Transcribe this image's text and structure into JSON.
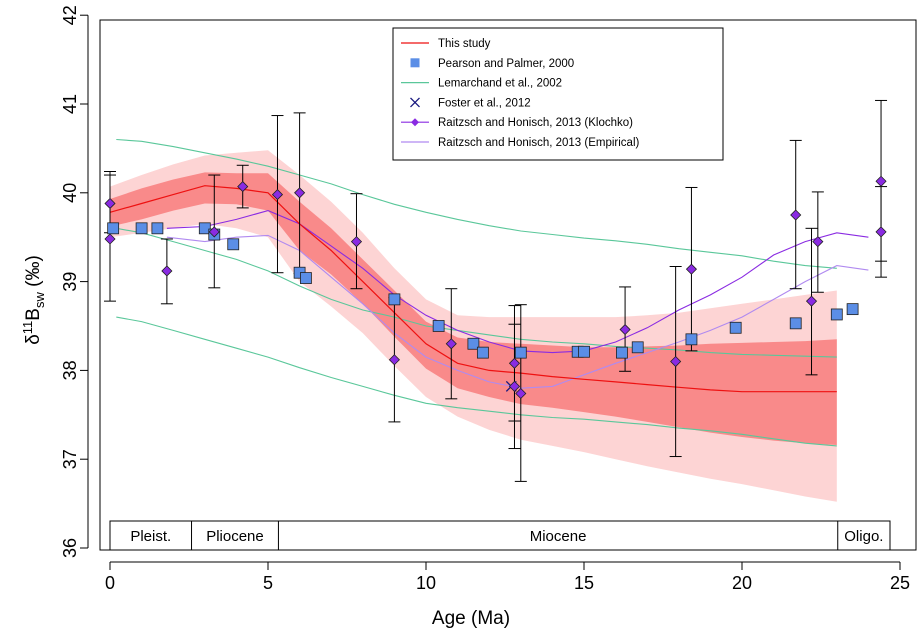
{
  "chart_data": {
    "type": "line",
    "title": "",
    "xlabel": "Age (Ma)",
    "ylabel_parts": {
      "pre": "δ",
      "sup": "11",
      "main": "B",
      "sub": "sw",
      "post": " (‰)"
    },
    "xlim": [
      0,
      25
    ],
    "ylim": [
      36,
      42
    ],
    "x_ticks": [
      "0",
      "5",
      "10",
      "15",
      "20",
      "25"
    ],
    "y_ticks": [
      "36",
      "37",
      "38",
      "39",
      "40",
      "41",
      "42"
    ],
    "grid": false,
    "legend_position": "top-center",
    "legend": [
      {
        "label": "This study",
        "color": "#ee1111",
        "kind": "line"
      },
      {
        "label": "Pearson and Palmer, 2000",
        "color": "#5b8ee6",
        "kind": "square"
      },
      {
        "label": "Lemarchand et al., 2002",
        "color": "#5ac79a",
        "kind": "line"
      },
      {
        "label": "Foster et al., 2012",
        "color": "#1a1a80",
        "kind": "cross"
      },
      {
        "label": "Raitzsch and Honisch, 2013 (Klochko)",
        "color": "#8a2be2",
        "kind": "diamond-line"
      },
      {
        "label": "Raitzsch and Honisch, 2013 (Empirical)",
        "color": "#b08af0",
        "kind": "line"
      }
    ],
    "epochs": [
      {
        "label": "Pleist.",
        "start": 0,
        "end": 2.58
      },
      {
        "label": "Pliocene",
        "start": 2.58,
        "end": 5.33
      },
      {
        "label": "Miocene",
        "start": 5.33,
        "end": 23.03
      },
      {
        "label": "Oligo.",
        "start": 23.03,
        "end": 25
      }
    ],
    "series": [
      {
        "name": "This study",
        "role": "median",
        "color": "#ee1111",
        "x": [
          0,
          1,
          2,
          3,
          4,
          5,
          6,
          7,
          8,
          9,
          10,
          11,
          12,
          13,
          14,
          15,
          16,
          17,
          18,
          19,
          20,
          21,
          22,
          23
        ],
        "y": [
          39.78,
          39.88,
          39.98,
          40.08,
          40.05,
          40.0,
          39.65,
          39.35,
          39.0,
          38.65,
          38.3,
          38.08,
          38.0,
          37.97,
          37.93,
          37.9,
          37.87,
          37.84,
          37.81,
          37.78,
          37.76,
          37.76,
          37.76,
          37.76
        ],
        "band_inner": {
          "x": [
            0,
            1,
            2,
            3,
            4,
            5,
            6,
            7,
            8,
            9,
            10,
            11,
            12,
            13,
            14,
            15,
            16,
            17,
            18,
            19,
            20,
            21,
            22,
            23
          ],
          "upper": [
            39.93,
            40.05,
            40.15,
            40.23,
            40.22,
            40.22,
            39.9,
            39.6,
            39.25,
            38.9,
            38.55,
            38.37,
            38.32,
            38.3,
            38.28,
            38.26,
            38.26,
            38.27,
            38.28,
            38.3,
            38.31,
            38.32,
            38.33,
            38.35
          ],
          "lower": [
            39.62,
            39.7,
            39.8,
            39.88,
            39.87,
            39.8,
            39.35,
            39.08,
            38.75,
            38.38,
            38.02,
            37.8,
            37.7,
            37.62,
            37.58,
            37.53,
            37.48,
            37.42,
            37.36,
            37.3,
            37.25,
            37.21,
            37.18,
            37.16
          ]
        },
        "band_outer": {
          "x": [
            0,
            1,
            2,
            3,
            4,
            5,
            6,
            7,
            8,
            9,
            10,
            11,
            12,
            13,
            14,
            15,
            16,
            17,
            18,
            19,
            20,
            21,
            22,
            23
          ],
          "upper": [
            40.07,
            40.2,
            40.32,
            40.42,
            40.45,
            40.48,
            40.2,
            39.9,
            39.55,
            39.15,
            38.8,
            38.62,
            38.6,
            38.6,
            38.6,
            38.6,
            38.6,
            38.62,
            38.65,
            38.7,
            38.75,
            38.8,
            38.85,
            38.9
          ],
          "lower": [
            39.5,
            39.55,
            39.6,
            39.65,
            39.6,
            39.5,
            39.0,
            38.72,
            38.42,
            38.05,
            37.7,
            37.48,
            37.33,
            37.22,
            37.15,
            37.08,
            37.0,
            36.92,
            36.85,
            36.78,
            36.72,
            36.65,
            36.58,
            36.52
          ]
        }
      },
      {
        "name": "Pearson and Palmer, 2000",
        "color": "#5b8ee6",
        "points": [
          {
            "x": 0.1,
            "y": 39.6
          },
          {
            "x": 1.0,
            "y": 39.6
          },
          {
            "x": 1.5,
            "y": 39.6
          },
          {
            "x": 3.0,
            "y": 39.6
          },
          {
            "x": 3.3,
            "y": 39.53
          },
          {
            "x": 3.9,
            "y": 39.42
          },
          {
            "x": 6.0,
            "y": 39.1
          },
          {
            "x": 6.2,
            "y": 39.04
          },
          {
            "x": 9.0,
            "y": 38.8
          },
          {
            "x": 10.4,
            "y": 38.5
          },
          {
            "x": 11.5,
            "y": 38.3
          },
          {
            "x": 11.8,
            "y": 38.2
          },
          {
            "x": 13.0,
            "y": 38.2
          },
          {
            "x": 14.8,
            "y": 38.21
          },
          {
            "x": 15.0,
            "y": 38.21
          },
          {
            "x": 16.2,
            "y": 38.2
          },
          {
            "x": 16.7,
            "y": 38.26
          },
          {
            "x": 18.4,
            "y": 38.35
          },
          {
            "x": 19.8,
            "y": 38.48
          },
          {
            "x": 21.7,
            "y": 38.53
          },
          {
            "x": 23.0,
            "y": 38.63
          },
          {
            "x": 23.5,
            "y": 38.69
          }
        ]
      },
      {
        "name": "Lemarchand et al., 2002",
        "color": "#5ac79a",
        "upper": {
          "x": [
            0.2,
            1,
            2,
            3,
            4,
            5,
            6,
            7,
            8,
            9,
            10,
            11,
            12,
            13,
            14,
            15,
            16,
            17,
            18,
            19,
            20,
            21,
            22,
            23
          ],
          "y": [
            40.6,
            40.58,
            40.52,
            40.45,
            40.38,
            40.3,
            40.2,
            40.1,
            39.98,
            39.87,
            39.78,
            39.7,
            39.63,
            39.57,
            39.53,
            39.49,
            39.46,
            39.42,
            39.37,
            39.33,
            39.29,
            39.23,
            39.18,
            39.15
          ]
        },
        "middle": {
          "x": [
            0.2,
            1,
            2,
            3,
            4,
            5,
            6,
            7,
            8,
            9,
            10,
            11,
            12,
            13,
            14,
            15,
            16,
            17,
            18,
            19,
            20,
            21,
            22,
            23
          ],
          "y": [
            39.6,
            39.55,
            39.45,
            39.35,
            39.25,
            39.12,
            38.95,
            38.8,
            38.68,
            38.6,
            38.5,
            38.45,
            38.4,
            38.35,
            38.32,
            38.3,
            38.27,
            38.25,
            38.23,
            38.2,
            38.18,
            38.17,
            38.16,
            38.15
          ]
        },
        "lower": {
          "x": [
            0.2,
            1,
            2,
            3,
            4,
            5,
            6,
            7,
            8,
            9,
            10,
            11,
            12,
            13,
            14,
            15,
            16,
            17,
            18,
            19,
            20,
            21,
            22,
            23
          ],
          "y": [
            38.6,
            38.55,
            38.45,
            38.35,
            38.25,
            38.15,
            38.03,
            37.92,
            37.82,
            37.72,
            37.63,
            37.58,
            37.54,
            37.5,
            37.47,
            37.45,
            37.42,
            37.39,
            37.35,
            37.32,
            37.28,
            37.23,
            37.18,
            37.15
          ]
        }
      },
      {
        "name": "Foster et al., 2012",
        "color": "#1a1a80",
        "points": [
          {
            "x": 12.7,
            "y": 37.82
          }
        ]
      },
      {
        "name": "Raitzsch and Honisch, 2013 (Klochko)",
        "color": "#8a2be2",
        "line": {
          "x": [
            1.8,
            3,
            4,
            5,
            6,
            7,
            8,
            9,
            10,
            11,
            12,
            13,
            14,
            15,
            16,
            17,
            18,
            19,
            20,
            21,
            22,
            23,
            24
          ],
          "y": [
            39.6,
            39.62,
            39.7,
            39.8,
            39.65,
            39.4,
            39.15,
            38.85,
            38.62,
            38.45,
            38.32,
            38.22,
            38.2,
            38.22,
            38.32,
            38.48,
            38.68,
            38.85,
            39.05,
            39.3,
            39.45,
            39.55,
            39.5
          ]
        },
        "points": [
          {
            "x": 0.0,
            "y": 39.88,
            "lo": 39.55,
            "hi": 40.2
          },
          {
            "x": 0.0,
            "y": 39.48,
            "lo": 38.78,
            "hi": 40.24
          },
          {
            "x": 1.8,
            "y": 39.12,
            "lo": 38.75,
            "hi": 39.48
          },
          {
            "x": 3.3,
            "y": 39.56,
            "lo": 38.93,
            "hi": 40.2
          },
          {
            "x": 4.2,
            "y": 40.07,
            "lo": 39.83,
            "hi": 40.31
          },
          {
            "x": 5.3,
            "y": 39.98,
            "lo": 39.1,
            "hi": 40.87
          },
          {
            "x": 6.0,
            "y": 40.0,
            "lo": 39.09,
            "hi": 40.9
          },
          {
            "x": 7.8,
            "y": 39.45,
            "lo": 38.92,
            "hi": 39.99
          },
          {
            "x": 9.0,
            "y": 38.12,
            "lo": 37.42,
            "hi": 38.82
          },
          {
            "x": 10.8,
            "y": 38.3,
            "lo": 37.68,
            "hi": 38.92
          },
          {
            "x": 12.8,
            "y": 38.08,
            "lo": 37.43,
            "hi": 38.73
          },
          {
            "x": 12.8,
            "y": 37.82,
            "lo": 37.12,
            "hi": 38.52
          },
          {
            "x": 13.0,
            "y": 37.74,
            "lo": 36.75,
            "hi": 38.74
          },
          {
            "x": 16.3,
            "y": 38.46,
            "lo": 37.99,
            "hi": 38.94
          },
          {
            "x": 17.9,
            "y": 38.1,
            "lo": 37.03,
            "hi": 39.17
          },
          {
            "x": 18.4,
            "y": 39.14,
            "lo": 38.22,
            "hi": 40.06
          },
          {
            "x": 21.7,
            "y": 39.75,
            "lo": 38.92,
            "hi": 40.59
          },
          {
            "x": 22.2,
            "y": 38.78,
            "lo": 37.95,
            "hi": 39.6
          },
          {
            "x": 22.4,
            "y": 39.45,
            "lo": 38.88,
            "hi": 40.01
          },
          {
            "x": 24.4,
            "y": 40.13,
            "lo": 39.23,
            "hi": 41.04
          },
          {
            "x": 24.4,
            "y": 39.56,
            "lo": 39.05,
            "hi": 40.07
          }
        ]
      },
      {
        "name": "Raitzsch and Honisch, 2013 (Empirical)",
        "color": "#b08af0",
        "x": [
          1.8,
          3,
          4,
          5,
          6,
          7,
          8,
          9,
          10,
          11,
          12,
          13,
          14,
          15,
          16,
          17,
          18,
          19,
          20,
          21,
          22,
          23,
          24
        ],
        "y": [
          39.5,
          39.45,
          39.5,
          39.52,
          39.35,
          39.05,
          38.75,
          38.42,
          38.15,
          38.0,
          37.87,
          37.8,
          37.82,
          37.95,
          38.08,
          38.2,
          38.32,
          38.45,
          38.6,
          38.8,
          39.0,
          39.18,
          39.13
        ]
      }
    ]
  }
}
